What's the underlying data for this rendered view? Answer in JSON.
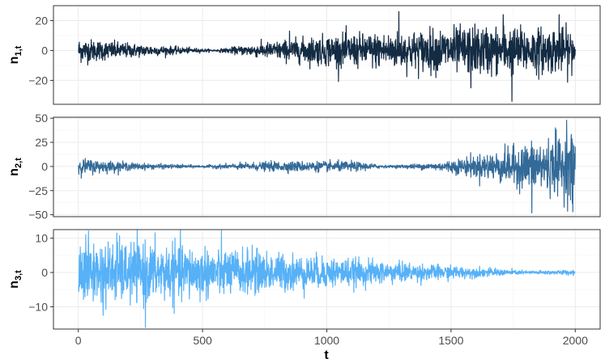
{
  "chart_data": {
    "type": "line",
    "xlabel": "t",
    "x_ticks": [
      0,
      500,
      1000,
      1500,
      2000
    ],
    "xlim": [
      -100,
      2100
    ],
    "n_points": 2000,
    "grid": true,
    "panels": [
      {
        "ylabel_main": "n",
        "ylabel_sub": "1,t",
        "color": "#132b43",
        "ylim": [
          -36,
          30
        ],
        "y_ticks": [
          -20,
          0,
          20
        ],
        "amplitude_envelope": [
          [
            0,
            4
          ],
          [
            250,
            2
          ],
          [
            550,
            0.3
          ],
          [
            800,
            3
          ],
          [
            1000,
            5
          ],
          [
            1300,
            6
          ],
          [
            1600,
            8
          ],
          [
            2000,
            7
          ]
        ],
        "spikes": [
          [
            1290,
            26
          ],
          [
            1745,
            -34
          ],
          [
            1935,
            24
          ],
          [
            1580,
            -25
          ],
          [
            1710,
            24
          ],
          [
            850,
            13
          ]
        ]
      },
      {
        "ylabel_main": "n",
        "ylabel_sub": "2,t",
        "color": "#336a98",
        "ylim": [
          -52,
          51
        ],
        "y_ticks": [
          -50,
          -25,
          0,
          25,
          50
        ],
        "amplitude_envelope": [
          [
            0,
            4
          ],
          [
            250,
            1.5
          ],
          [
            500,
            0.6
          ],
          [
            800,
            2.5
          ],
          [
            1100,
            2.5
          ],
          [
            1250,
            0.5
          ],
          [
            1450,
            2
          ],
          [
            1700,
            8
          ],
          [
            1850,
            13
          ],
          [
            2000,
            16
          ]
        ],
        "spikes": [
          [
            1965,
            48
          ],
          [
            1825,
            -48
          ],
          [
            1990,
            -47
          ],
          [
            1920,
            40
          ]
        ]
      },
      {
        "ylabel_main": "n",
        "ylabel_sub": "3,t",
        "color": "#56b1f7",
        "ylim": [
          -16.5,
          12.5
        ],
        "y_ticks": [
          -10,
          0,
          10
        ],
        "amplitude_envelope": [
          [
            0,
            4.5
          ],
          [
            400,
            4
          ],
          [
            700,
            3
          ],
          [
            1000,
            2.2
          ],
          [
            1300,
            1.4
          ],
          [
            1600,
            0.7
          ],
          [
            1800,
            0.25
          ],
          [
            2000,
            0.35
          ]
        ],
        "spikes": [
          [
            270,
            -16
          ],
          [
            155,
            11.5
          ],
          [
            30,
            11
          ],
          [
            100,
            -12.5
          ],
          [
            700,
            8
          ]
        ]
      }
    ]
  }
}
